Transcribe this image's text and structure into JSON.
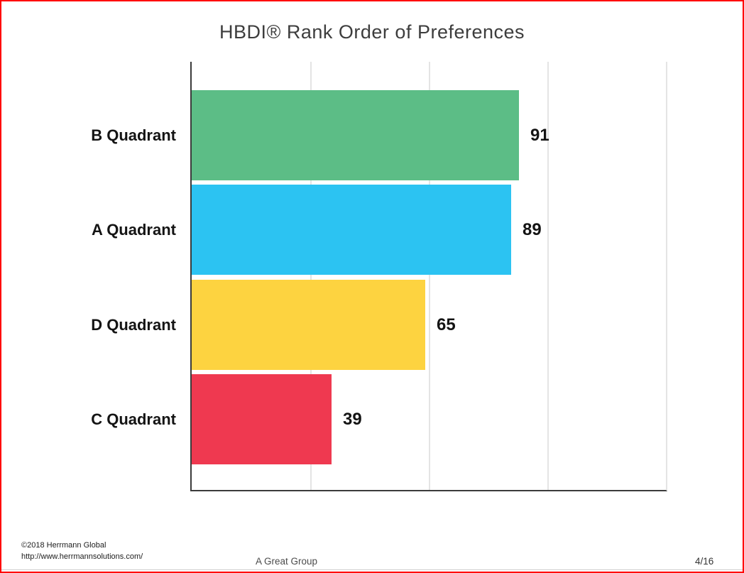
{
  "page": {
    "border_color": "#ff0000"
  },
  "chart_data": {
    "type": "bar",
    "orientation": "horizontal",
    "title": "HBDI® Rank Order of Preferences",
    "categories": [
      "B Quadrant",
      "A Quadrant",
      "D Quadrant",
      "C Quadrant"
    ],
    "values": [
      91,
      89,
      65,
      39
    ],
    "colors": [
      "#5cbd86",
      "#2cc3f2",
      "#fdd340",
      "#ef3950"
    ],
    "xlim": [
      0,
      132
    ],
    "grid": "vertical",
    "gridline_positions_pct": [
      25,
      50,
      75
    ],
    "grid_color": "#e4e4e4",
    "axis_color": "#3b3b3b",
    "legend": "none",
    "value_labels": "outside-end"
  },
  "footer": {
    "copyright": "©2018 Herrmann Global",
    "url": "http://www.herrmannsolutions.com/",
    "group_name": "A Great Group",
    "page_number": "4/16"
  }
}
